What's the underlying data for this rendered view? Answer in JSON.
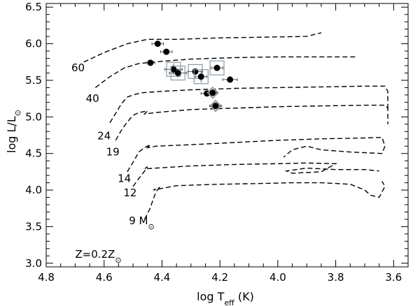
{
  "chart_data": {
    "type": "scatter",
    "xlabel": "log T",
    "xlabel_sub": "eff",
    "xlabel_unit": " (K)",
    "ylabel": "log L/L",
    "ylabel_sym": "⊙",
    "xlim": [
      4.8,
      3.55
    ],
    "ylim": [
      2.95,
      6.55
    ],
    "x_ticks": [
      4.8,
      4.6,
      4.4,
      4.2,
      4.0,
      3.8,
      3.6
    ],
    "x_tick_labels": [
      "4.8",
      "4.6",
      "4.4",
      "4.2",
      "4.0",
      "3.8",
      "3.6"
    ],
    "y_ticks": [
      3.0,
      3.5,
      4.0,
      4.5,
      5.0,
      5.5,
      6.0,
      6.5
    ],
    "y_tick_labels": [
      "3.0",
      "3.5",
      "4.0",
      "4.5",
      "5.0",
      "5.5",
      "6.0",
      "6.5"
    ],
    "annotation": {
      "text": "Z=0.2Z",
      "sym": "⊙",
      "x": 4.7,
      "y": 3.12
    },
    "tracks": [
      {
        "mass": "60",
        "label": "60",
        "label_pos": [
          4.69,
          5.67
        ],
        "points": [
          [
            4.67,
            5.75
          ],
          [
            4.6,
            5.88
          ],
          [
            4.52,
            6.0
          ],
          [
            4.45,
            6.06
          ],
          [
            4.35,
            6.06
          ],
          [
            4.2,
            6.08
          ],
          [
            4.05,
            6.09
          ],
          [
            3.9,
            6.1
          ],
          [
            3.85,
            6.15
          ]
        ]
      },
      {
        "mass": "40",
        "label": "40",
        "label_pos": [
          4.64,
          5.25
        ],
        "points": [
          [
            4.63,
            5.4
          ],
          [
            4.58,
            5.55
          ],
          [
            4.53,
            5.67
          ],
          [
            4.48,
            5.73
          ],
          [
            4.4,
            5.76
          ],
          [
            4.3,
            5.79
          ],
          [
            4.15,
            5.81
          ],
          [
            4.0,
            5.82
          ],
          [
            3.85,
            5.82
          ],
          [
            3.73,
            5.82
          ]
        ]
      },
      {
        "mass": "24",
        "label": "24",
        "label_pos": [
          4.6,
          4.74
        ],
        "points": [
          [
            4.58,
            4.92
          ],
          [
            4.56,
            5.05
          ],
          [
            4.54,
            5.18
          ],
          [
            4.52,
            5.27
          ],
          [
            4.5,
            5.3
          ],
          [
            4.47,
            5.33
          ],
          [
            4.4,
            5.35
          ],
          [
            4.3,
            5.37
          ],
          [
            4.15,
            5.39
          ],
          [
            4.0,
            5.4
          ],
          [
            3.85,
            5.41
          ],
          [
            3.7,
            5.42
          ],
          [
            3.63,
            5.42
          ],
          [
            3.62,
            5.35
          ],
          [
            3.62,
            5.1
          ]
        ]
      },
      {
        "mass": "19",
        "label": "19",
        "label_pos": [
          4.57,
          4.52
        ],
        "points": [
          [
            4.56,
            4.68
          ],
          [
            4.54,
            4.82
          ],
          [
            4.52,
            4.93
          ],
          [
            4.5,
            5.02
          ],
          [
            4.48,
            5.06
          ],
          [
            4.45,
            5.08
          ],
          [
            4.46,
            5.04
          ],
          [
            4.42,
            5.06
          ],
          [
            4.3,
            5.1
          ],
          [
            4.15,
            5.12
          ],
          [
            4.0,
            5.14
          ],
          [
            3.85,
            5.15
          ],
          [
            3.7,
            5.16
          ],
          [
            3.63,
            5.16
          ],
          [
            3.62,
            5.12
          ],
          [
            3.62,
            4.9
          ]
        ]
      },
      {
        "mass": "14",
        "label": "14",
        "label_pos": [
          4.53,
          4.16
        ],
        "points": [
          [
            4.52,
            4.25
          ],
          [
            4.5,
            4.38
          ],
          [
            4.48,
            4.52
          ],
          [
            4.46,
            4.58
          ],
          [
            4.44,
            4.62
          ],
          [
            4.45,
            4.58
          ],
          [
            4.42,
            4.6
          ],
          [
            4.3,
            4.62
          ],
          [
            4.15,
            4.65
          ],
          [
            4.0,
            4.68
          ],
          [
            3.85,
            4.7
          ],
          [
            3.72,
            4.71
          ],
          [
            3.64,
            4.72
          ],
          [
            3.63,
            4.6
          ],
          [
            3.64,
            4.5
          ],
          [
            3.75,
            4.52
          ],
          [
            3.85,
            4.55
          ],
          [
            3.9,
            4.6
          ],
          [
            3.95,
            4.55
          ],
          [
            3.98,
            4.45
          ]
        ]
      },
      {
        "mass": "12",
        "label": "12",
        "label_pos": [
          4.51,
          3.96
        ],
        "points": [
          [
            4.5,
            4.05
          ],
          [
            4.48,
            4.16
          ],
          [
            4.46,
            4.26
          ],
          [
            4.45,
            4.32
          ],
          [
            4.46,
            4.29
          ],
          [
            4.42,
            4.3
          ],
          [
            4.3,
            4.33
          ],
          [
            4.15,
            4.35
          ],
          [
            4.0,
            4.36
          ],
          [
            3.9,
            4.37
          ],
          [
            3.8,
            4.36
          ],
          [
            3.85,
            4.25
          ],
          [
            3.95,
            4.23
          ],
          [
            3.97,
            4.26
          ],
          [
            3.9,
            4.3
          ],
          [
            3.8,
            4.28
          ],
          [
            3.7,
            4.28
          ],
          [
            3.65,
            4.26
          ]
        ]
      },
      {
        "mass": "9",
        "label": "9 M",
        "label_sym": "⊙",
        "label_pos": [
          4.47,
          3.58
        ],
        "points": [
          [
            4.46,
            3.6
          ],
          [
            4.45,
            3.68
          ],
          [
            4.44,
            3.76
          ],
          [
            4.43,
            3.88
          ],
          [
            4.42,
            3.98
          ],
          [
            4.41,
            4.03
          ],
          [
            4.43,
            4.0
          ],
          [
            4.35,
            4.06
          ],
          [
            4.2,
            4.08
          ],
          [
            4.05,
            4.09
          ],
          [
            3.95,
            4.1
          ],
          [
            3.85,
            4.1
          ],
          [
            3.75,
            4.08
          ],
          [
            3.7,
            4.0
          ],
          [
            3.68,
            3.93
          ],
          [
            3.65,
            3.9
          ],
          [
            3.63,
            4.05
          ],
          [
            3.64,
            4.12
          ]
        ]
      }
    ],
    "stars": [
      {
        "x": 4.415,
        "y": 6.0,
        "xerr": 0.02,
        "yerr": 0.0,
        "marker": "none"
      },
      {
        "x": 4.385,
        "y": 5.89,
        "xerr": 0.02,
        "yerr": 0.04,
        "marker": "none"
      },
      {
        "x": 4.44,
        "y": 5.74,
        "xerr": 0.015,
        "yerr": 0.0,
        "marker": "none"
      },
      {
        "x": 4.36,
        "y": 5.65,
        "xerr": 0.03,
        "yerr": 0.08,
        "marker": "box"
      },
      {
        "x": 4.345,
        "y": 5.6,
        "xerr": 0.03,
        "yerr": 0.06,
        "marker": "box"
      },
      {
        "x": 4.285,
        "y": 5.62,
        "xerr": 0.025,
        "yerr": 0.0,
        "marker": "box"
      },
      {
        "x": 4.265,
        "y": 5.55,
        "xerr": 0.02,
        "yerr": 0.08,
        "marker": "box"
      },
      {
        "x": 4.21,
        "y": 5.67,
        "xerr": 0.02,
        "yerr": 0.0,
        "marker": "box"
      },
      {
        "x": 4.165,
        "y": 5.51,
        "xerr": 0.025,
        "yerr": 0.0,
        "marker": "none"
      },
      {
        "x": 4.245,
        "y": 5.32,
        "xerr": 0.02,
        "yerr": 0.0,
        "marker": "none"
      },
      {
        "x": 4.225,
        "y": 5.33,
        "xerr": 0.015,
        "yerr": 0.0,
        "marker": "diamond"
      },
      {
        "x": 4.215,
        "y": 5.15,
        "xerr": 0.02,
        "yerr": 0.0,
        "marker": "diamond"
      }
    ]
  }
}
